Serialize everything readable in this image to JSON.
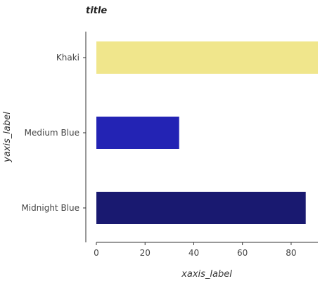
{
  "chart_data": {
    "type": "bar",
    "orientation": "horizontal",
    "title": "title",
    "xlabel": "xaxis_label",
    "ylabel": "yaxis_label",
    "categories": [
      "Midnight Blue",
      "Medium Blue",
      "Khaki"
    ],
    "values": [
      86,
      34,
      91
    ],
    "colors": [
      "#191970",
      "#2323b4",
      "#f0e68c"
    ],
    "xlim": [
      0,
      91
    ],
    "xticks": [
      0,
      20,
      40,
      60,
      80
    ],
    "grid": false
  }
}
